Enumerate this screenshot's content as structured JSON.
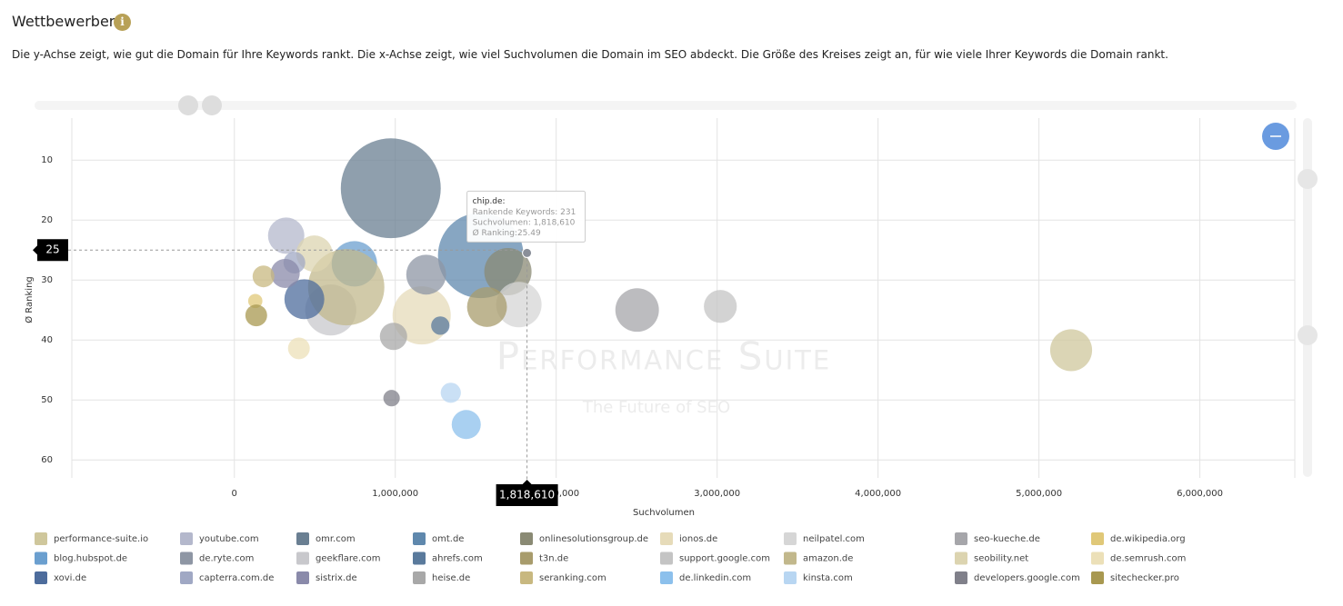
{
  "header": {
    "title": "Wettbewerber",
    "description": "Die y-Achse zeigt, wie gut die Domain für Ihre Keywords rankt. Die x-Achse zeigt, wie viel Suchvolumen die Domain im SEO abdeckt. Die Größe des Kreises zeigt an, für wie viele Ihrer Keywords die Domain rankt."
  },
  "chart_data": {
    "type": "bubble",
    "x_label": "Suchvolumen",
    "y_label": "Ø Ranking",
    "watermark": "Performance Suite",
    "watermark_subtitle": "The Future of SEO",
    "xlim": [
      -1010000,
      6590000
    ],
    "xticks": [
      0,
      {
        "value": 1000000,
        "label": "1,000,000"
      },
      {
        "value": 2000000,
        "label": "2,000,000"
      },
      {
        "value": 3000000,
        "label": "3,000,000"
      },
      {
        "value": 4000000,
        "label": "4,000,000"
      },
      {
        "value": 5000000,
        "label": "5,000,000"
      },
      {
        "value": 6000000,
        "label": "6,000,000"
      }
    ],
    "ylim": [
      3,
      63
    ],
    "y_reversed": true,
    "yticks": [
      10,
      20,
      30,
      40,
      50,
      60
    ],
    "grid": true,
    "crosshair_y": 25,
    "crosshair_x": {
      "value": 1818610,
      "label": "1,818,610"
    },
    "tooltip": {
      "title": "chip.de:",
      "lines": [
        "Rankende Keywords: 231",
        "Suchvolumen: 1,818,610",
        "Ø Ranking:25.49"
      ],
      "x": 1818610,
      "y": 25.49
    },
    "series": [
      {
        "name": "performance-suite.io",
        "color": "#cfc79c",
        "x": [
          5200000
        ],
        "values": [
          41.7
        ],
        "sizes": [
          52
        ]
      },
      {
        "name": "youtube.com",
        "color": "#b4b8cc",
        "x": [
          322000
        ],
        "values": [
          22.6
        ],
        "sizes": [
          39
        ]
      },
      {
        "name": "omr.com",
        "color": "#6a7f92",
        "x": [
          972000
        ],
        "values": [
          14.7
        ],
        "sizes": [
          295
        ]
      },
      {
        "name": "omt.de",
        "color": "#5f88ad",
        "x": [
          1531000
        ],
        "values": [
          25.9
        ],
        "sizes": [
          216
        ]
      },
      {
        "name": "onlinesolutionsgroup.de",
        "color": "#8a8a74",
        "x": [
          1700000
        ],
        "values": [
          28.6
        ],
        "sizes": [
          66
        ]
      },
      {
        "name": "ionos.de",
        "color": "#e6dbb9",
        "x": [
          1164000
        ],
        "values": [
          35.9
        ],
        "sizes": [
          100
        ]
      },
      {
        "name": "neilpatel.com",
        "color": "#d6d6d6",
        "x": [
          1768000
        ],
        "values": [
          34.1
        ],
        "sizes": [
          61
        ]
      },
      {
        "name": "seo-kueche.de",
        "color": "#a6a6aa",
        "x": [
          2503000
        ],
        "values": [
          35.0
        ],
        "sizes": [
          56
        ]
      },
      {
        "name": "de.wikipedia.org",
        "color": "#e0c878",
        "x": [
          130000
        ],
        "values": [
          33.5
        ],
        "sizes": [
          6
        ]
      },
      {
        "name": "blog.hubspot.de",
        "color": "#6b9fcf",
        "x": [
          746000
        ],
        "values": [
          27.3
        ],
        "sizes": [
          61
        ]
      },
      {
        "name": "de.ryte.com",
        "color": "#8e96a4",
        "x": [
          1192000
        ],
        "values": [
          29.1
        ],
        "sizes": [
          47
        ]
      },
      {
        "name": "geekflare.com",
        "color": "#c8c8cc",
        "x": [
          599000
        ],
        "values": [
          35.0
        ],
        "sizes": [
          77
        ]
      },
      {
        "name": "ahrefs.com",
        "color": "#5a7a9c",
        "x": [
          1280000
        ],
        "values": [
          37.6
        ],
        "sizes": [
          10
        ]
      },
      {
        "name": "t3n.de",
        "color": "#a89c6c",
        "x": [
          1570000
        ],
        "values": [
          34.5
        ],
        "sizes": [
          47
        ]
      },
      {
        "name": "support.google.com",
        "color": "#c4c4c4",
        "x": [
          3020000
        ],
        "values": [
          34.4
        ],
        "sizes": [
          32
        ]
      },
      {
        "name": "amazon.de",
        "color": "#c2b88c",
        "x": [
          695000
        ],
        "values": [
          31.2
        ],
        "sizes": [
          172
        ]
      },
      {
        "name": "seobility.net",
        "color": "#dcd4b0",
        "x": [
          497000
        ],
        "values": [
          25.6
        ],
        "sizes": [
          39
        ]
      },
      {
        "name": "de.semrush.com",
        "color": "#ece0b8",
        "x": [
          401000
        ],
        "values": [
          41.4
        ],
        "sizes": [
          14
        ]
      },
      {
        "name": "xovi.de",
        "color": "#4d6c9c",
        "x": [
          435000
        ],
        "values": [
          33.2
        ],
        "sizes": [
          47
        ]
      },
      {
        "name": "capterra.com.de",
        "color": "#a0a8c4",
        "x": [
          373000
        ],
        "values": [
          27.1
        ],
        "sizes": [
          14
        ]
      },
      {
        "name": "sistrix.de",
        "color": "#8a8aaa",
        "x": [
          316000
        ],
        "values": [
          28.9
        ],
        "sizes": [
          25
        ]
      },
      {
        "name": "heise.de",
        "color": "#a8a8a8",
        "x": [
          989000
        ],
        "values": [
          39.4
        ],
        "sizes": [
          22
        ]
      },
      {
        "name": "seranking.com",
        "color": "#c8b880",
        "x": [
          181000
        ],
        "values": [
          29.4
        ],
        "sizes": [
          14
        ]
      },
      {
        "name": "de.linkedin.com",
        "color": "#8cc0ec",
        "x": [
          1441000
        ],
        "values": [
          54.1
        ],
        "sizes": [
          25
        ]
      },
      {
        "name": "kinsta.com",
        "color": "#b8d6f2",
        "x": [
          1345000
        ],
        "values": [
          48.8
        ],
        "sizes": [
          12
        ]
      },
      {
        "name": "developers.google.com",
        "color": "#80808a",
        "x": [
          977000
        ],
        "values": [
          49.7
        ],
        "sizes": [
          8
        ]
      },
      {
        "name": "sitechecker.pro",
        "color": "#a89850",
        "x": [
          136000
        ],
        "values": [
          35.9
        ],
        "sizes": [
          14
        ]
      }
    ]
  }
}
